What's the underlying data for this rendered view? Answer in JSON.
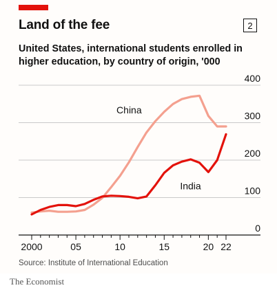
{
  "badge": "2",
  "source": "Source: Institute of International Education",
  "footer": "The Economist",
  "colors": {
    "brand_red": "#e3120b",
    "india": "#e3120b",
    "china": "#f4a08f",
    "grid": "#c9c9c9"
  },
  "chart_data": {
    "type": "line",
    "title": "Land of the fee",
    "subtitle": "United States, international students enrolled in higher education, by country of origin, '000",
    "xlabel": "",
    "ylabel": "",
    "ylim": [
      0,
      400
    ],
    "xlim": [
      2000,
      2022
    ],
    "yticks": [
      0,
      100,
      200,
      300,
      400
    ],
    "xticks": [
      {
        "value": 2000,
        "label": "2000"
      },
      {
        "value": 2005,
        "label": "05"
      },
      {
        "value": 2010,
        "label": "10"
      },
      {
        "value": 2015,
        "label": "15"
      },
      {
        "value": 2020,
        "label": "20"
      },
      {
        "value": 2022,
        "label": "22"
      }
    ],
    "grid": true,
    "series": [
      {
        "name": "China",
        "x": [
          2000,
          2001,
          2002,
          2003,
          2004,
          2005,
          2006,
          2007,
          2008,
          2009,
          2010,
          2011,
          2012,
          2013,
          2014,
          2015,
          2016,
          2017,
          2018,
          2019,
          2020,
          2021,
          2022
        ],
        "values": [
          60,
          63,
          65,
          62,
          62,
          63,
          67,
          81,
          99,
          128,
          158,
          194,
          235,
          274,
          304,
          329,
          350,
          363,
          369,
          372,
          318,
          290,
          290
        ]
      },
      {
        "name": "India",
        "x": [
          2000,
          2001,
          2002,
          2003,
          2004,
          2005,
          2006,
          2007,
          2008,
          2009,
          2010,
          2011,
          2012,
          2013,
          2014,
          2015,
          2016,
          2017,
          2018,
          2019,
          2020,
          2021,
          2022
        ],
        "values": [
          55,
          67,
          75,
          80,
          80,
          77,
          83,
          94,
          103,
          105,
          104,
          102,
          98,
          103,
          133,
          166,
          186,
          196,
          202,
          193,
          168,
          200,
          269
        ]
      }
    ]
  }
}
